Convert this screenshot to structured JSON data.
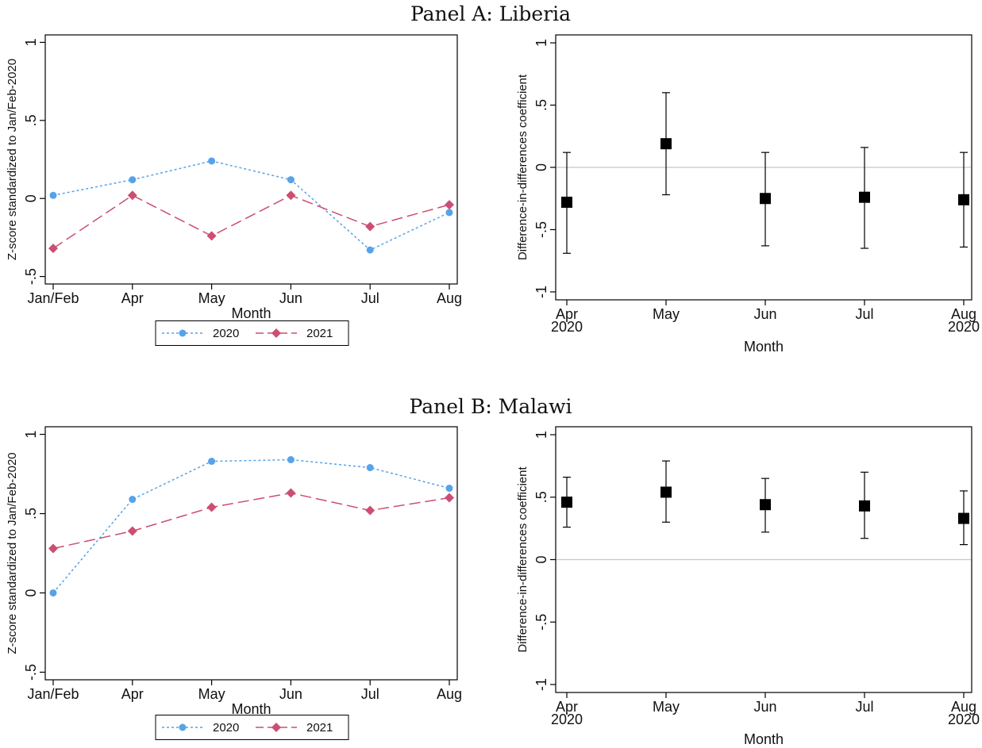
{
  "panels": [
    {
      "title": "Panel A: Liberia"
    },
    {
      "title": "Panel B: Malawi"
    }
  ],
  "chart_data": [
    {
      "panel": "Panel A: Liberia",
      "type": "line",
      "xlabel": "Month",
      "ylabel": "Z-score standardized to Jan/Feb-2020",
      "categories": [
        "Jan/Feb",
        "Apr",
        "May",
        "Jun",
        "Jul",
        "Aug"
      ],
      "ylim": [
        -0.5,
        1
      ],
      "yticks": [
        {
          "value": -0.5,
          "label": "-.5"
        },
        {
          "value": 0,
          "label": "0"
        },
        {
          "value": 0.5,
          "label": ".5"
        },
        {
          "value": 1,
          "label": "1"
        }
      ],
      "series": [
        {
          "name": "2020",
          "color": "#56a3e9",
          "marker": "circle",
          "line": "dotted",
          "values": [
            0.02,
            0.12,
            0.24,
            0.12,
            -0.33,
            -0.09
          ]
        },
        {
          "name": "2021",
          "color": "#cc4e72",
          "marker": "diamond",
          "line": "dashed",
          "values": [
            -0.32,
            0.02,
            -0.24,
            0.02,
            -0.18,
            -0.04
          ]
        }
      ],
      "legend": "bottom",
      "grid": false
    },
    {
      "panel": "Panel A: Liberia",
      "type": "scatter",
      "xlabel": "Month",
      "ylabel": "Difference-in-differences coefficient",
      "categories": [
        "Apr\n2020",
        "May",
        "Jun",
        "Jul",
        "Aug\n2020"
      ],
      "ylim": [
        -1,
        1
      ],
      "yticks": [
        {
          "value": -1,
          "label": "-1"
        },
        {
          "value": -0.5,
          "label": "-.5"
        },
        {
          "value": 0,
          "label": "0"
        },
        {
          "value": 0.5,
          "label": ".5"
        },
        {
          "value": 1,
          "label": "1"
        }
      ],
      "reference_line": 0,
      "points": [
        {
          "estimate": -0.28,
          "ci": [
            -0.69,
            0.12
          ]
        },
        {
          "estimate": 0.19,
          "ci": [
            -0.22,
            0.6
          ]
        },
        {
          "estimate": -0.25,
          "ci": [
            -0.63,
            0.12
          ]
        },
        {
          "estimate": -0.24,
          "ci": [
            -0.65,
            0.16
          ]
        },
        {
          "estimate": -0.26,
          "ci": [
            -0.64,
            0.12
          ]
        }
      ],
      "grid": false
    },
    {
      "panel": "Panel B: Malawi",
      "type": "line",
      "xlabel": "Month",
      "ylabel": "Z-score standardized to Jan/Feb-2020",
      "categories": [
        "Jan/Feb",
        "Apr",
        "May",
        "Jun",
        "Jul",
        "Aug"
      ],
      "ylim": [
        -0.5,
        1
      ],
      "yticks": [
        {
          "value": -0.5,
          "label": "-.5"
        },
        {
          "value": 0,
          "label": "0"
        },
        {
          "value": 0.5,
          "label": ".5"
        },
        {
          "value": 1,
          "label": "1"
        }
      ],
      "series": [
        {
          "name": "2020",
          "color": "#56a3e9",
          "marker": "circle",
          "line": "dotted",
          "values": [
            0.0,
            0.59,
            0.83,
            0.84,
            0.79,
            0.66
          ]
        },
        {
          "name": "2021",
          "color": "#cc4e72",
          "marker": "diamond",
          "line": "dashed",
          "values": [
            0.28,
            0.39,
            0.54,
            0.63,
            0.52,
            0.6
          ]
        }
      ],
      "legend": "bottom",
      "grid": false
    },
    {
      "panel": "Panel B: Malawi",
      "type": "scatter",
      "xlabel": "Month",
      "ylabel": "Difference-in-differences coefficient",
      "categories": [
        "Apr\n2020",
        "May",
        "Jun",
        "Jul",
        "Aug\n2020"
      ],
      "ylim": [
        -1,
        1
      ],
      "yticks": [
        {
          "value": -1,
          "label": "-1"
        },
        {
          "value": -0.5,
          "label": "-.5"
        },
        {
          "value": 0,
          "label": "0"
        },
        {
          "value": 0.5,
          "label": ".5"
        },
        {
          "value": 1,
          "label": "1"
        }
      ],
      "reference_line": 0,
      "points": [
        {
          "estimate": 0.46,
          "ci": [
            0.26,
            0.66
          ]
        },
        {
          "estimate": 0.54,
          "ci": [
            0.3,
            0.79
          ]
        },
        {
          "estimate": 0.44,
          "ci": [
            0.22,
            0.65
          ]
        },
        {
          "estimate": 0.43,
          "ci": [
            0.17,
            0.7
          ]
        },
        {
          "estimate": 0.33,
          "ci": [
            0.12,
            0.55
          ]
        }
      ],
      "grid": false
    }
  ]
}
